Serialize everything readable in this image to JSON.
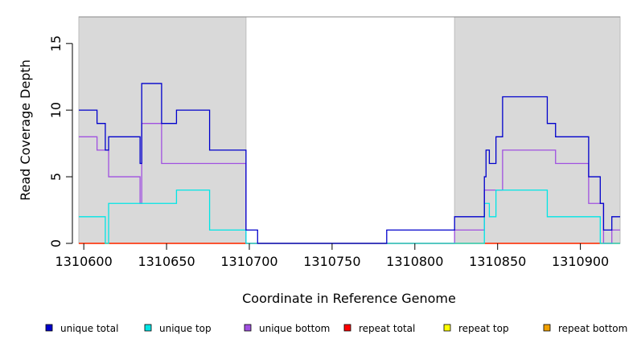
{
  "chart_data": {
    "type": "line",
    "title": "",
    "xlabel": "Coordinate in Reference Genome",
    "ylabel": "Read Coverage Depth",
    "xlim": [
      1310597,
      1310924
    ],
    "ylim": [
      0,
      17
    ],
    "xticks": [
      1310600,
      1310650,
      1310700,
      1310750,
      1310800,
      1310850,
      1310900
    ],
    "xtick_labels": [
      "1310600",
      "1310650",
      "1310700",
      "1310750",
      "1310800",
      "1310850",
      "1310900"
    ],
    "yticks": [
      0,
      5,
      10,
      15
    ],
    "ytick_labels": [
      "0",
      "5",
      "10",
      "15"
    ],
    "shaded_regions": [
      [
        1310597,
        1310698
      ],
      [
        1310824,
        1310924
      ]
    ],
    "shade_color": "#d9d9d9",
    "legend_position": "bottom",
    "series": [
      {
        "name": "unique total",
        "color": "#0000cc",
        "x": [
          1310597,
          1310608,
          1310613,
          1310615,
          1310634,
          1310635,
          1310647,
          1310656,
          1310676,
          1310698,
          1310705,
          1310783,
          1310824,
          1310842,
          1310843,
          1310845,
          1310849,
          1310853,
          1310880,
          1310885,
          1310905,
          1310912,
          1310914,
          1310919,
          1310924
        ],
        "y": [
          10,
          9,
          7,
          8,
          6,
          12,
          9,
          10,
          7,
          1,
          0,
          1,
          2,
          5,
          7,
          6,
          8,
          11,
          9,
          8,
          5,
          3,
          1,
          2,
          2
        ]
      },
      {
        "name": "unique top",
        "color": "#00e5e5",
        "x": [
          1310597,
          1310613,
          1310615,
          1310656,
          1310676,
          1310698,
          1310842,
          1310845,
          1310849,
          1310880,
          1310912,
          1310924
        ],
        "y": [
          2,
          0,
          3,
          4,
          1,
          0,
          3,
          2,
          4,
          2,
          0,
          0
        ]
      },
      {
        "name": "unique bottom",
        "color": "#a050e0",
        "x": [
          1310597,
          1310608,
          1310615,
          1310634,
          1310635,
          1310647,
          1310698,
          1310824,
          1310842,
          1310853,
          1310885,
          1310905,
          1310914,
          1310919,
          1310924
        ],
        "y": [
          8,
          7,
          5,
          3,
          9,
          6,
          0,
          1,
          4,
          7,
          6,
          3,
          0,
          1,
          1
        ]
      },
      {
        "name": "repeat total",
        "color": "#ff0000",
        "x": [
          1310597,
          1310924
        ],
        "y": [
          0,
          0
        ]
      },
      {
        "name": "repeat top",
        "color": "#ffff00",
        "x": [
          1310597,
          1310924
        ],
        "y": [
          0,
          0
        ]
      },
      {
        "name": "repeat bottom",
        "color": "#f0a000",
        "x": [
          1310597,
          1310924
        ],
        "y": [
          0,
          0
        ]
      }
    ]
  }
}
